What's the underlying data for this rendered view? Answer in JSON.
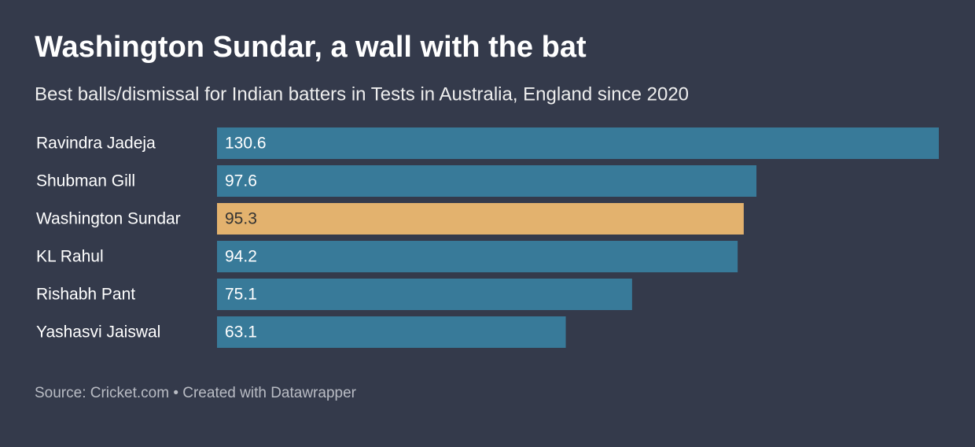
{
  "chart_data": {
    "type": "hbar",
    "title": "Washington Sundar, a wall with the bat",
    "subtitle": "Best balls/dismissal for Indian batters in Tests in Australia, England since 2020",
    "categories": [
      "Ravindra Jadeja",
      "Shubman Gill",
      "Washington Sundar",
      "KL Rahul",
      "Rishabh Pant",
      "Yashasvi Jaiswal"
    ],
    "values": [
      130.6,
      97.6,
      95.3,
      94.2,
      75.1,
      63.1
    ],
    "colors": [
      "#387a99",
      "#387a99",
      "#e3b26e",
      "#387a99",
      "#387a99",
      "#387a99"
    ],
    "xlim": [
      0,
      130.6
    ],
    "source": "Source: Cricket.com • Created with Datawrapper"
  }
}
